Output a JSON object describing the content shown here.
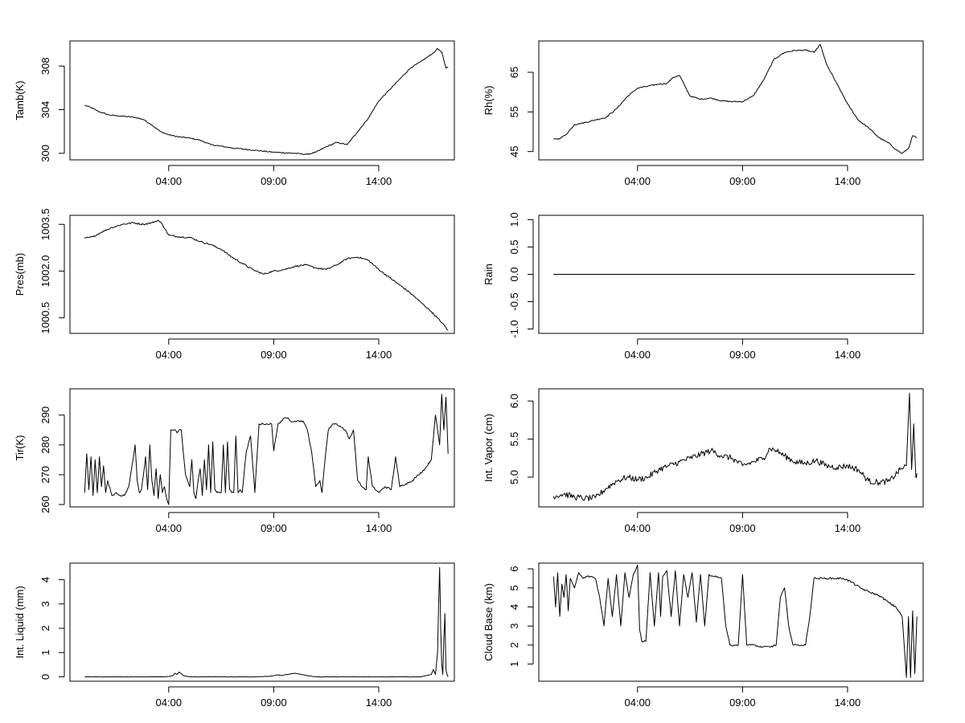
{
  "chart_data": [
    {
      "type": "line",
      "ylabel": "Tamb(K)",
      "x_ticks": [
        "04:00",
        "09:00",
        "14:00"
      ],
      "y_ticks": [
        300,
        304,
        308
      ],
      "ylim": [
        299.4,
        310.3
      ],
      "xlim_hours": [
        -0.7,
        17.6
      ],
      "noise": 0.05,
      "series": [
        {
          "x": [
            0.0,
            0.3,
            0.7,
            1.2,
            1.8,
            2.4,
            2.8,
            3.2,
            3.6,
            4.0,
            4.5,
            5.0,
            5.5,
            6.0,
            7.0,
            8.0,
            9.0,
            10.0,
            10.6,
            11.0,
            11.5,
            12.0,
            12.5,
            13.0,
            13.5,
            14.0,
            14.5,
            15.0,
            15.5,
            16.0,
            16.3,
            16.6,
            16.8,
            17.0,
            17.2,
            17.3
          ],
          "y": [
            304.4,
            304.2,
            303.8,
            303.5,
            303.4,
            303.3,
            303.1,
            302.6,
            302.0,
            301.7,
            301.5,
            301.4,
            301.2,
            300.8,
            300.5,
            300.3,
            300.1,
            300.0,
            299.9,
            300.1,
            300.6,
            301.0,
            300.8,
            302.0,
            303.2,
            304.8,
            305.8,
            306.8,
            307.8,
            308.4,
            308.8,
            309.2,
            309.6,
            309.3,
            307.8,
            307.9
          ]
        }
      ]
    },
    {
      "type": "line",
      "ylabel": "Rh(%)",
      "x_ticks": [
        "04:00",
        "09:00",
        "14:00"
      ],
      "y_ticks": [
        45,
        55,
        65
      ],
      "ylim": [
        42.9,
        72.9
      ],
      "xlim_hours": [
        -0.7,
        17.6
      ],
      "noise": 0.15,
      "series": [
        {
          "x": [
            0.0,
            0.3,
            0.6,
            1.0,
            1.5,
            2.0,
            2.5,
            3.0,
            3.5,
            4.0,
            4.5,
            5.0,
            5.4,
            5.7,
            6.0,
            6.5,
            7.0,
            7.5,
            8.0,
            8.5,
            9.0,
            9.5,
            10.0,
            10.5,
            11.0,
            11.5,
            12.0,
            12.4,
            12.7,
            13.0,
            13.5,
            14.0,
            14.5,
            15.0,
            15.5,
            16.0,
            16.3,
            16.6,
            16.9,
            17.1,
            17.3
          ],
          "y": [
            48.1,
            48.3,
            49.3,
            51.8,
            52.3,
            53.0,
            53.6,
            55.8,
            58.8,
            61.0,
            61.5,
            62.0,
            62.2,
            63.7,
            64.2,
            59.0,
            58.2,
            58.5,
            57.8,
            57.6,
            57.6,
            59.0,
            63.0,
            68.3,
            70.0,
            70.5,
            70.6,
            70.0,
            72.0,
            67.0,
            62.0,
            57.0,
            53.0,
            51.0,
            48.5,
            47.0,
            45.5,
            44.5,
            45.8,
            49.0,
            48.5
          ]
        }
      ]
    },
    {
      "type": "line",
      "ylabel": "Pres(mb)",
      "x_ticks": [
        "04:00",
        "09:00",
        "14:00"
      ],
      "y_ticks": [
        "1000.5",
        "1002.0",
        "1003.5"
      ],
      "y_tick_values": [
        1000.5,
        1002.0,
        1003.5
      ],
      "ylim": [
        1000.0,
        1003.79
      ],
      "xlim_hours": [
        -0.7,
        17.6
      ],
      "noise": 0.025,
      "series": [
        {
          "x": [
            0.0,
            0.4,
            0.8,
            1.3,
            1.8,
            2.3,
            2.8,
            3.2,
            3.5,
            3.7,
            4.0,
            4.5,
            5.0,
            5.5,
            6.0,
            6.5,
            7.0,
            7.5,
            8.0,
            8.5,
            9.0,
            9.5,
            10.0,
            10.5,
            11.0,
            11.5,
            12.0,
            12.5,
            13.0,
            13.5,
            14.0,
            14.5,
            15.0,
            15.5,
            16.0,
            16.5,
            17.0,
            17.3
          ],
          "y": [
            1003.05,
            1003.1,
            1003.25,
            1003.4,
            1003.5,
            1003.55,
            1003.5,
            1003.55,
            1003.63,
            1003.5,
            1003.15,
            1003.1,
            1003.08,
            1002.95,
            1002.85,
            1002.7,
            1002.45,
            1002.25,
            1002.05,
            1001.9,
            1002.0,
            1002.05,
            1002.15,
            1002.2,
            1002.1,
            1002.05,
            1002.2,
            1002.4,
            1002.45,
            1002.35,
            1002.05,
            1001.8,
            1001.55,
            1001.3,
            1001.0,
            1000.7,
            1000.35,
            1000.1
          ]
        }
      ]
    },
    {
      "type": "line",
      "ylabel": "Rain",
      "x_ticks": [
        "04:00",
        "09:00",
        "14:00"
      ],
      "y_ticks": [
        "-1.0",
        "-0.5",
        "0.0",
        "0.5",
        "1.0"
      ],
      "y_tick_values": [
        -1.0,
        -0.5,
        0.0,
        0.5,
        1.0
      ],
      "ylim": [
        -1.08,
        1.08
      ],
      "xlim_hours": [
        -0.7,
        17.6
      ],
      "noise": 0,
      "series": [
        {
          "x": [
            0.0,
            17.2
          ],
          "y": [
            0.0,
            0.0
          ]
        }
      ]
    },
    {
      "type": "line",
      "ylabel": "Tir(K)",
      "x_ticks": [
        "04:00",
        "09:00",
        "14:00"
      ],
      "y_ticks": [
        260,
        270,
        280,
        290
      ],
      "ylim": [
        259.2,
        298.8
      ],
      "xlim_hours": [
        -0.7,
        17.6
      ],
      "noise": 0.3,
      "series": [
        {
          "x": [
            0.0,
            0.1,
            0.2,
            0.3,
            0.4,
            0.5,
            0.6,
            0.7,
            0.8,
            0.9,
            1.0,
            1.1,
            1.3,
            1.5,
            1.7,
            1.9,
            2.1,
            2.3,
            2.4,
            2.5,
            2.6,
            2.7,
            2.8,
            2.9,
            3.0,
            3.1,
            3.2,
            3.3,
            3.4,
            3.5,
            3.6,
            3.7,
            3.8,
            3.9,
            4.0,
            4.1,
            4.2,
            4.3,
            4.4,
            4.5,
            4.6,
            4.8,
            5.0,
            5.1,
            5.2,
            5.3,
            5.4,
            5.5,
            5.6,
            5.7,
            5.8,
            5.9,
            6.0,
            6.1,
            6.2,
            6.3,
            6.4,
            6.5,
            6.6,
            6.7,
            6.8,
            6.9,
            7.0,
            7.1,
            7.2,
            7.3,
            7.4,
            7.5,
            7.7,
            7.9,
            8.1,
            8.3,
            8.5,
            8.7,
            8.9,
            9.0,
            9.2,
            9.4,
            9.5,
            9.6,
            9.7,
            9.8,
            10.0,
            10.2,
            10.4,
            10.6,
            10.8,
            11.0,
            11.2,
            11.3,
            11.4,
            11.5,
            11.6,
            11.8,
            12.0,
            12.2,
            12.4,
            12.6,
            12.8,
            13.0,
            13.2,
            13.4,
            13.5,
            13.7,
            14.0,
            14.3,
            14.6,
            14.8,
            15.0,
            15.3,
            15.6,
            15.9,
            16.2,
            16.5,
            16.7,
            16.9,
            17.0,
            17.1,
            17.2,
            17.3
          ],
          "y": [
            264,
            277,
            265,
            276,
            263,
            275,
            264,
            276,
            266,
            273,
            264,
            268,
            263,
            264,
            263,
            263,
            266,
            275,
            280,
            268,
            264,
            265,
            270,
            276,
            265,
            280,
            268,
            263,
            272,
            262,
            270,
            264,
            266,
            262,
            260,
            285,
            285,
            285,
            284,
            285,
            285,
            270,
            266,
            275,
            264,
            262,
            268,
            272,
            263,
            275,
            265,
            280,
            264,
            281,
            265,
            264,
            264,
            264,
            280,
            264,
            281,
            265,
            264,
            264,
            283,
            264,
            265,
            264,
            278,
            283,
            264,
            287,
            287,
            287,
            287,
            278,
            287,
            288,
            289,
            289,
            289,
            288,
            288,
            288,
            288,
            285,
            278,
            266,
            268,
            264,
            272,
            279,
            285,
            287,
            287,
            286,
            285,
            282,
            285,
            268,
            266,
            265,
            276,
            266,
            264,
            266,
            265,
            276,
            266,
            267,
            268,
            270,
            272,
            275,
            290,
            280,
            297,
            285,
            296,
            277
          ]
        }
      ]
    },
    {
      "type": "line",
      "ylabel": "Int. Vapor (cm)",
      "x_ticks": [
        "04:00",
        "09:00",
        "14:00"
      ],
      "y_ticks": [
        "5.0",
        "5.5",
        "6.0"
      ],
      "y_tick_values": [
        5.0,
        5.5,
        6.0
      ],
      "ylim": [
        4.61,
        6.16
      ],
      "xlim_hours": [
        -0.7,
        17.6
      ],
      "noise": 0.04,
      "series": [
        {
          "x": [
            0.0,
            0.5,
            1.0,
            1.5,
            2.0,
            2.5,
            3.0,
            3.5,
            4.0,
            4.5,
            5.0,
            5.5,
            6.0,
            6.5,
            7.0,
            7.5,
            8.0,
            8.5,
            9.0,
            9.5,
            10.0,
            10.3,
            10.6,
            11.0,
            11.5,
            12.0,
            12.5,
            13.0,
            13.5,
            14.0,
            14.5,
            15.0,
            15.5,
            16.0,
            16.5,
            16.8,
            16.95,
            17.05,
            17.15,
            17.25,
            17.3
          ],
          "y": [
            4.75,
            4.78,
            4.74,
            4.72,
            4.73,
            4.85,
            4.95,
            5.0,
            4.97,
            5.0,
            5.1,
            5.15,
            5.2,
            5.25,
            5.3,
            5.35,
            5.28,
            5.25,
            5.15,
            5.2,
            5.25,
            5.38,
            5.35,
            5.28,
            5.2,
            5.18,
            5.22,
            5.15,
            5.13,
            5.15,
            5.1,
            4.95,
            4.93,
            4.95,
            5.1,
            5.15,
            6.1,
            5.1,
            5.7,
            5.0,
            5.05
          ]
        }
      ]
    },
    {
      "type": "line",
      "ylabel": "Int. Liquid (mm)",
      "x_ticks": [
        "04:00",
        "09:00",
        "14:00"
      ],
      "y_ticks": [
        0,
        1,
        2,
        3,
        4
      ],
      "ylim": [
        -0.18,
        4.68
      ],
      "xlim_hours": [
        -0.7,
        17.6
      ],
      "noise": 0.005,
      "series": [
        {
          "x": [
            0.0,
            3.8,
            4.0,
            4.2,
            4.3,
            4.4,
            4.5,
            4.7,
            5.0,
            8.0,
            8.8,
            9.0,
            9.2,
            9.4,
            9.6,
            9.8,
            10.0,
            10.3,
            10.6,
            11.0,
            16.0,
            16.5,
            16.6,
            16.7,
            16.8,
            16.85,
            16.9,
            16.95,
            17.0,
            17.05,
            17.1,
            17.15,
            17.2,
            17.25,
            17.3
          ],
          "y": [
            0.0,
            0.0,
            0.02,
            0.05,
            0.15,
            0.1,
            0.2,
            0.05,
            0.0,
            0.0,
            0.02,
            0.05,
            0.08,
            0.05,
            0.1,
            0.12,
            0.15,
            0.1,
            0.05,
            0.0,
            0.0,
            0.1,
            0.3,
            0.1,
            1.0,
            3.0,
            4.5,
            2.0,
            0.5,
            0.1,
            1.5,
            2.6,
            0.3,
            0.1,
            0.0
          ]
        }
      ]
    },
    {
      "type": "line",
      "ylabel": "Cloud Base (km)",
      "x_ticks": [
        "04:00",
        "09:00",
        "14:00"
      ],
      "y_ticks": [
        1,
        2,
        3,
        4,
        5,
        6
      ],
      "ylim": [
        0.1,
        6.3
      ],
      "xlim_hours": [
        -0.7,
        17.6
      ],
      "noise": 0.05,
      "series": [
        {
          "x": [
            0.0,
            0.1,
            0.2,
            0.3,
            0.4,
            0.5,
            0.6,
            0.7,
            0.8,
            1.0,
            1.2,
            1.4,
            1.6,
            1.8,
            2.0,
            2.2,
            2.4,
            2.6,
            2.8,
            3.0,
            3.2,
            3.4,
            3.6,
            3.8,
            4.0,
            4.1,
            4.2,
            4.3,
            4.4,
            4.6,
            4.8,
            5.0,
            5.1,
            5.2,
            5.4,
            5.6,
            5.8,
            6.0,
            6.2,
            6.4,
            6.6,
            6.8,
            7.0,
            7.2,
            7.4,
            7.6,
            7.8,
            8.0,
            8.2,
            8.4,
            8.6,
            8.8,
            9.0,
            9.2,
            9.4,
            9.6,
            9.8,
            10.0,
            10.3,
            10.6,
            10.8,
            11.0,
            11.2,
            11.4,
            11.6,
            11.8,
            12.0,
            12.2,
            12.4,
            12.6,
            12.8,
            13.0,
            13.4,
            13.8,
            14.2,
            14.6,
            15.0,
            15.5,
            16.0,
            16.3,
            16.6,
            16.8,
            16.9,
            17.0,
            17.1,
            17.2,
            17.3
          ],
          "y": [
            5.6,
            4.0,
            5.8,
            3.5,
            5.2,
            4.5,
            5.7,
            3.8,
            5.5,
            5.0,
            5.8,
            5.5,
            5.6,
            5.6,
            5.5,
            4.5,
            3.0,
            5.5,
            3.5,
            5.7,
            3.0,
            5.8,
            4.5,
            5.7,
            6.2,
            2.8,
            2.2,
            2.2,
            2.2,
            5.8,
            3.0,
            5.8,
            3.5,
            5.6,
            5.9,
            3.5,
            5.9,
            3.0,
            5.7,
            4.5,
            5.8,
            3.2,
            5.7,
            3.0,
            5.7,
            5.6,
            5.6,
            5.5,
            3.0,
            2.0,
            2.0,
            2.0,
            5.7,
            2.0,
            2.0,
            2.0,
            1.9,
            1.9,
            1.9,
            2.0,
            4.5,
            5.0,
            3.0,
            2.0,
            2.0,
            2.0,
            2.0,
            3.5,
            5.5,
            5.5,
            5.5,
            5.5,
            5.5,
            5.5,
            5.3,
            5.0,
            4.8,
            4.6,
            4.2,
            4.0,
            3.5,
            0.3,
            3.5,
            0.3,
            3.8,
            0.5,
            3.5
          ]
        }
      ]
    }
  ]
}
